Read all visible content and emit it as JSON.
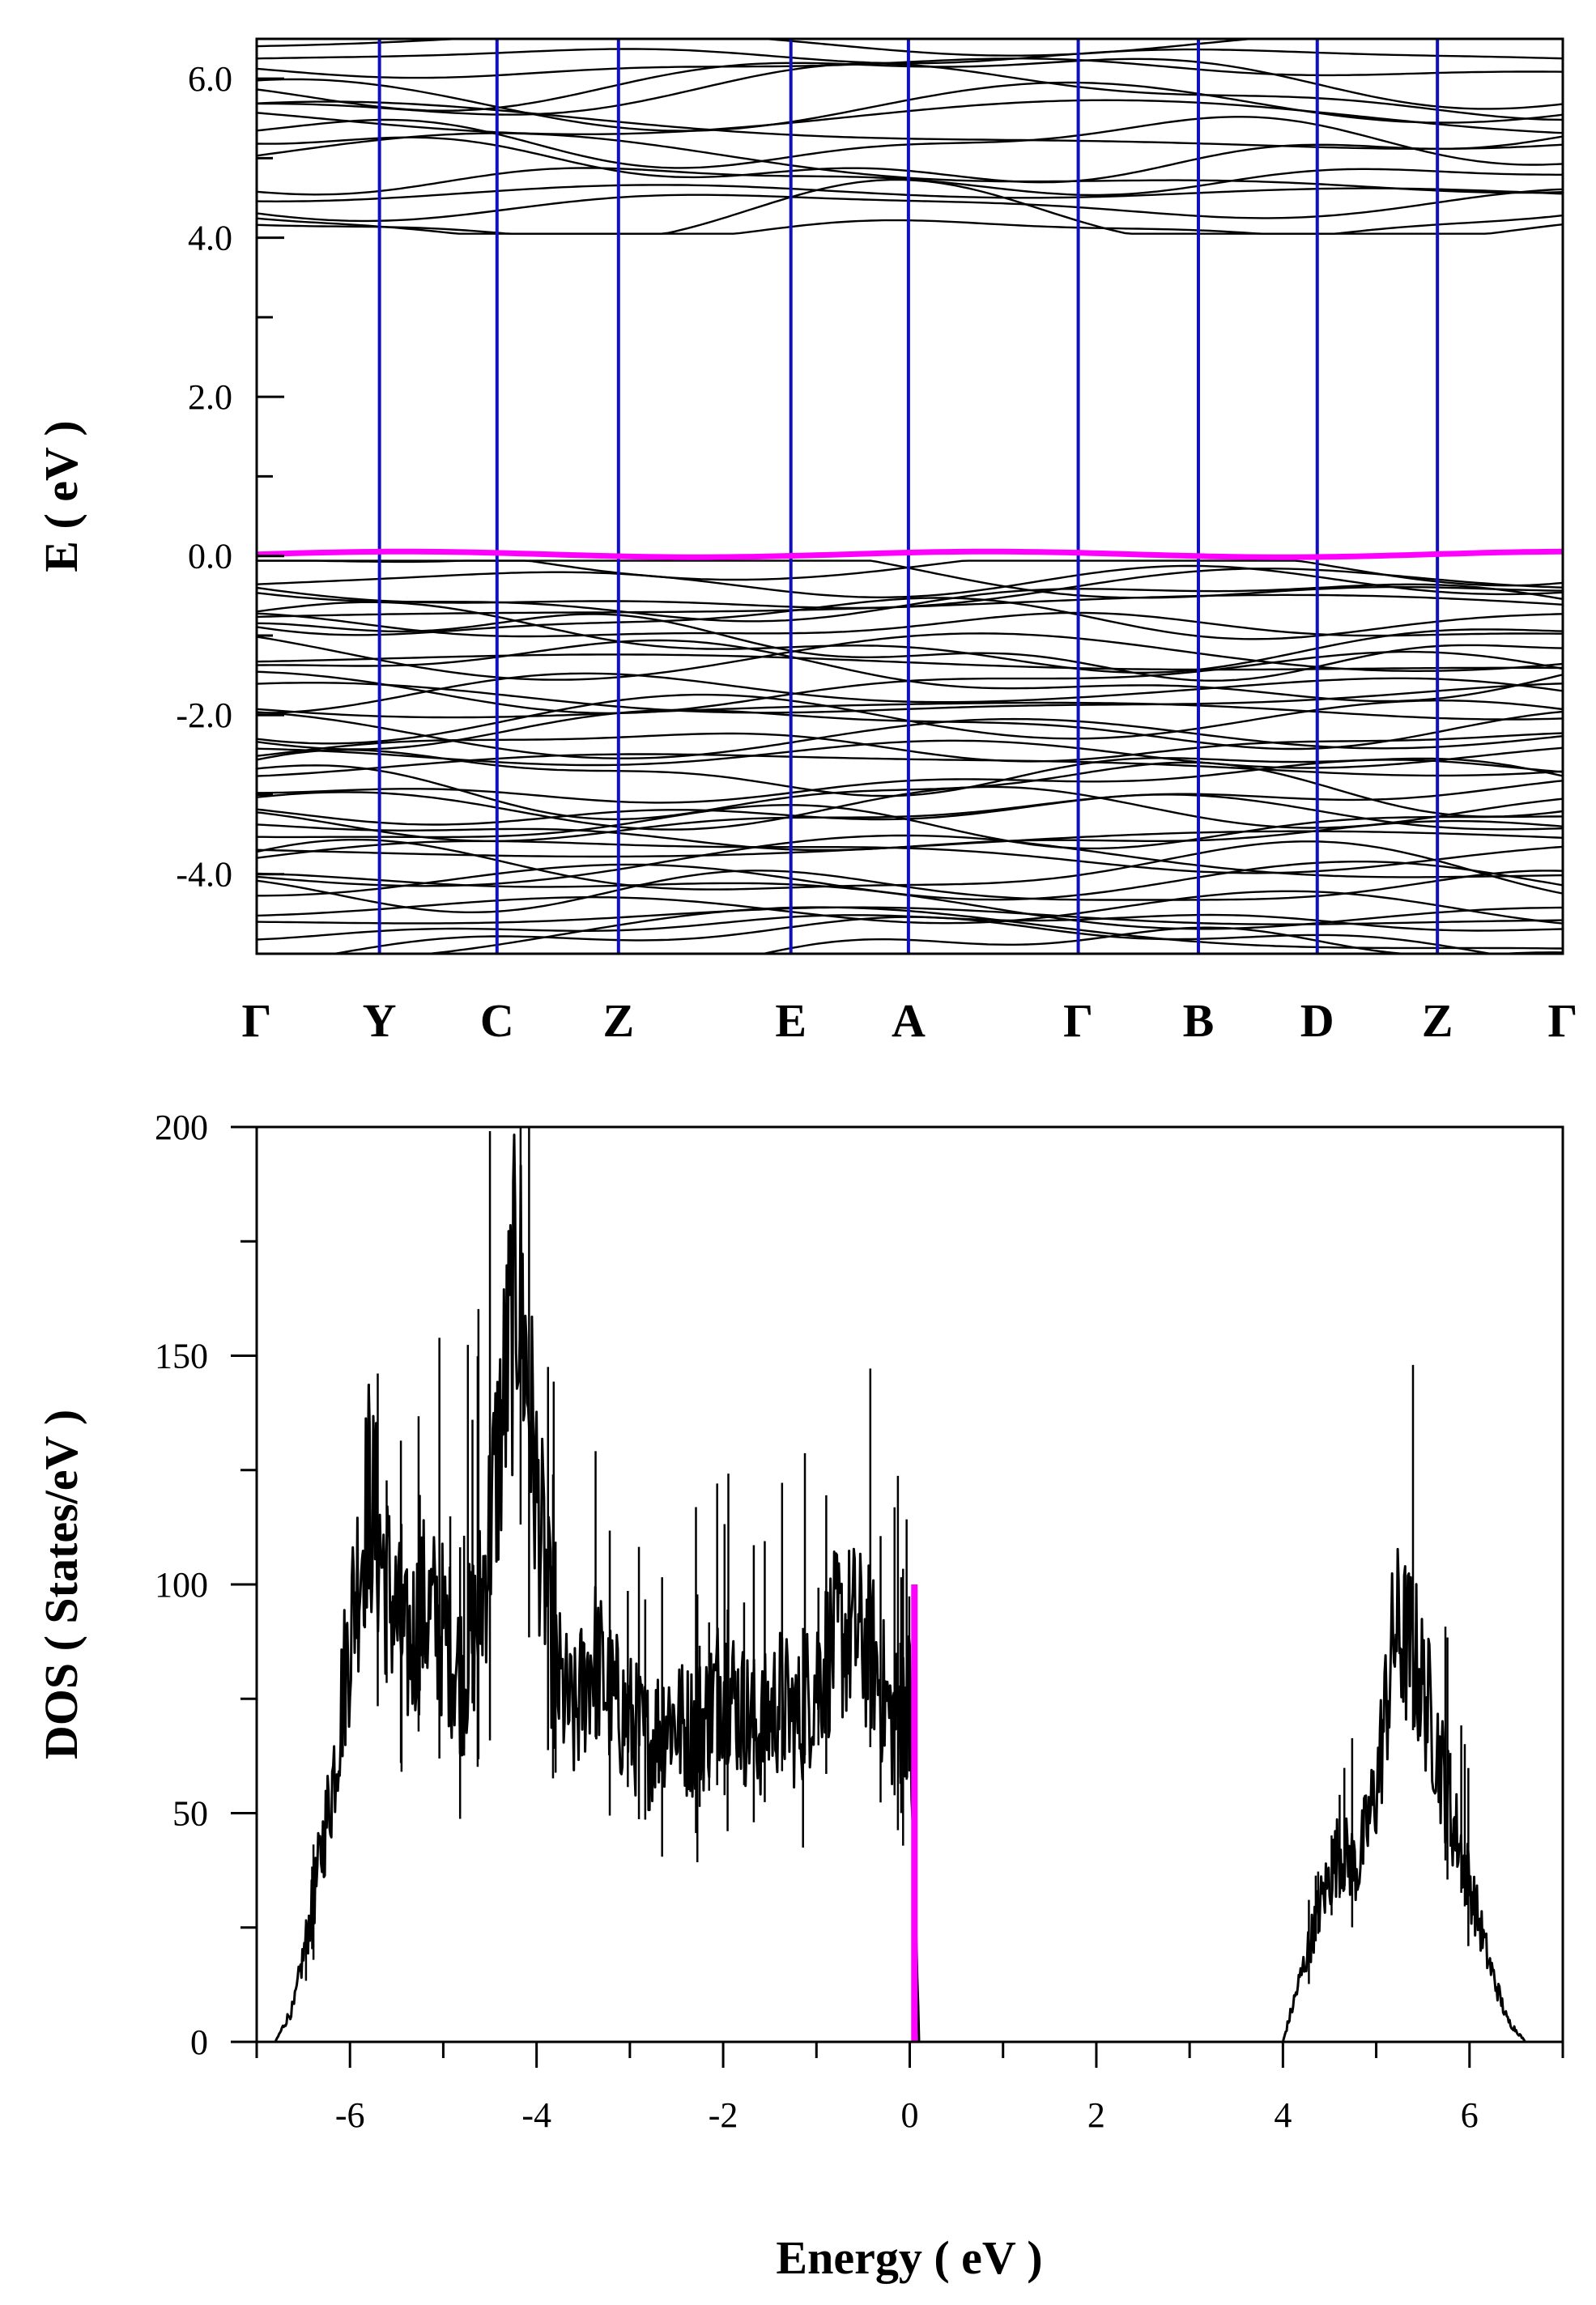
{
  "chart_data": [
    {
      "type": "line",
      "panel": "band-structure",
      "title": "",
      "xlabel": "",
      "ylabel": "E ( eV )",
      "ylim": [
        -5.0,
        6.5
      ],
      "yticks": [
        -4.0,
        -2.0,
        0.0,
        2.0,
        4.0,
        6.0
      ],
      "ytick_labels": [
        "-4.0",
        "-2.0",
        "0.0",
        "2.0",
        "4.0",
        "6.0"
      ],
      "kpoints": [
        "Γ",
        "Y",
        "C",
        "Z",
        "E",
        "A",
        "Γ",
        "B",
        "D",
        "Z",
        "Γ"
      ],
      "kpoint_positions": [
        0.0,
        0.094,
        0.184,
        0.277,
        0.409,
        0.499,
        0.629,
        0.721,
        0.812,
        0.904,
        1.0
      ],
      "fermi_level": 0.0,
      "band_regions": {
        "valence": [
          -5.0,
          -0.1
        ],
        "conduction": [
          4.1,
          6.45
        ]
      },
      "grid": false,
      "colors": {
        "bands": "#000000",
        "kpoint_lines": "#1010c0",
        "fermi_band": "#ff00ff"
      }
    },
    {
      "type": "line",
      "panel": "density-of-states",
      "title": "",
      "xlabel": "Energy ( eV )",
      "ylabel": "DOS ( States/eV )",
      "xlim": [
        -7.0,
        7.0
      ],
      "ylim": [
        0,
        200
      ],
      "xticks": [
        -6,
        -4,
        -2,
        0,
        2,
        4,
        6
      ],
      "yticks": [
        0,
        50,
        100,
        150,
        200
      ],
      "x": [
        -6.8,
        -6.6,
        -6.4,
        -6.2,
        -6.0,
        -5.8,
        -5.6,
        -5.4,
        -5.2,
        -5.0,
        -4.8,
        -4.6,
        -4.4,
        -4.2,
        -4.0,
        -3.8,
        -3.6,
        -3.4,
        -3.2,
        -3.0,
        -2.8,
        -2.6,
        -2.4,
        -2.2,
        -2.0,
        -1.8,
        -1.6,
        -1.4,
        -1.2,
        -1.0,
        -0.8,
        -0.6,
        -0.4,
        -0.2,
        0.0,
        0.1,
        4.0,
        4.2,
        4.4,
        4.6,
        4.8,
        5.0,
        5.2,
        5.4,
        5.6,
        5.8,
        6.0,
        6.2,
        6.4,
        6.6
      ],
      "y": [
        0,
        8,
        30,
        55,
        90,
        120,
        100,
        85,
        95,
        90,
        80,
        95,
        130,
        170,
        120,
        80,
        70,
        85,
        75,
        70,
        65,
        72,
        68,
        70,
        80,
        72,
        68,
        75,
        70,
        80,
        88,
        90,
        85,
        70,
        75,
        0,
        0,
        15,
        30,
        42,
        38,
        55,
        90,
        85,
        70,
        50,
        35,
        18,
        5,
        0
      ],
      "fermi_marker": {
        "x": 0.05,
        "y": 100
      },
      "grid": false,
      "colors": {
        "dos": "#000000",
        "fermi_marker": "#ff00ff"
      }
    }
  ]
}
